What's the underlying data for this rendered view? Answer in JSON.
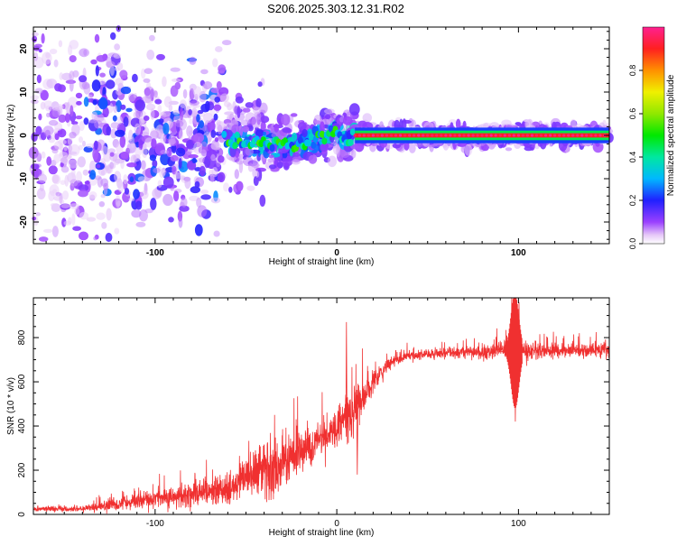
{
  "title": "S206.2025.303.12.31.R02",
  "chart_data": [
    {
      "type": "heatmap",
      "name": "spectrogram",
      "xlabel": "Height of straight line (km)",
      "ylabel": "Frequency (Hz)",
      "xlim": [
        -167,
        150
      ],
      "ylim": [
        -25,
        25
      ],
      "xticks": [
        -100,
        0,
        100
      ],
      "yticks": [
        -20,
        -10,
        0,
        10,
        20
      ],
      "colorbar": {
        "label": "Normalized spectral amplitude",
        "range": [
          0,
          1
        ],
        "ticks": [
          "0.0",
          "0.2",
          "0.4",
          "0.6",
          "0.8"
        ],
        "tick_values": [
          0,
          0.2,
          0.4,
          0.6,
          0.8
        ]
      },
      "frequency_centerline": [
        {
          "x": -167,
          "y": -1
        },
        {
          "x": -60,
          "y": -1
        },
        {
          "x": -40,
          "y": -2
        },
        {
          "x": -25,
          "y": -2.5
        },
        {
          "x": -15,
          "y": -1.5
        },
        {
          "x": -8,
          "y": 0
        },
        {
          "x": 0,
          "y": 0.5
        },
        {
          "x": 5,
          "y": -1
        },
        {
          "x": 10,
          "y": 0
        },
        {
          "x": 150,
          "y": 0
        }
      ],
      "strong_band_x_range": [
        10,
        150
      ],
      "strong_band_amplitude": 0.9
    },
    {
      "type": "line",
      "name": "snr",
      "xlabel": "Height of straight line (km)",
      "ylabel": "SNR (10 * v/v)",
      "xlim": [
        -167,
        150
      ],
      "ylim": [
        0,
        980
      ],
      "xticks": [
        -100,
        0,
        100
      ],
      "yticks": [
        0,
        200,
        400,
        600,
        800
      ],
      "color": "#f03030",
      "trend": [
        {
          "x": -167,
          "y": 25
        },
        {
          "x": -140,
          "y": 25
        },
        {
          "x": -120,
          "y": 45
        },
        {
          "x": -100,
          "y": 70
        },
        {
          "x": -80,
          "y": 90
        },
        {
          "x": -60,
          "y": 115
        },
        {
          "x": -50,
          "y": 165
        },
        {
          "x": -40,
          "y": 200
        },
        {
          "x": -30,
          "y": 240
        },
        {
          "x": -20,
          "y": 285
        },
        {
          "x": -10,
          "y": 340
        },
        {
          "x": 0,
          "y": 390
        },
        {
          "x": 10,
          "y": 470
        },
        {
          "x": 20,
          "y": 600
        },
        {
          "x": 30,
          "y": 690
        },
        {
          "x": 40,
          "y": 720
        },
        {
          "x": 60,
          "y": 730
        },
        {
          "x": 80,
          "y": 735
        },
        {
          "x": 100,
          "y": 740
        },
        {
          "x": 120,
          "y": 740
        },
        {
          "x": 150,
          "y": 745
        }
      ],
      "noise_amplitude": [
        {
          "x": -167,
          "y": 12
        },
        {
          "x": -140,
          "y": 15
        },
        {
          "x": -120,
          "y": 35
        },
        {
          "x": -100,
          "y": 45
        },
        {
          "x": -80,
          "y": 55
        },
        {
          "x": -60,
          "y": 75
        },
        {
          "x": -45,
          "y": 110
        },
        {
          "x": -35,
          "y": 150
        },
        {
          "x": -20,
          "y": 110
        },
        {
          "x": -10,
          "y": 90
        },
        {
          "x": 0,
          "y": 100
        },
        {
          "x": 10,
          "y": 130
        },
        {
          "x": 20,
          "y": 60
        },
        {
          "x": 30,
          "y": 30
        },
        {
          "x": 60,
          "y": 25
        },
        {
          "x": 85,
          "y": 40
        },
        {
          "x": 100,
          "y": 50
        },
        {
          "x": 120,
          "y": 35
        },
        {
          "x": 150,
          "y": 40
        }
      ],
      "features": [
        {
          "x": 5,
          "y": 870
        },
        {
          "x": 11,
          "y": 180
        },
        {
          "x": 96,
          "y": 980
        },
        {
          "x": 98,
          "y": 420
        },
        {
          "x": 100,
          "y": 960
        }
      ]
    }
  ]
}
